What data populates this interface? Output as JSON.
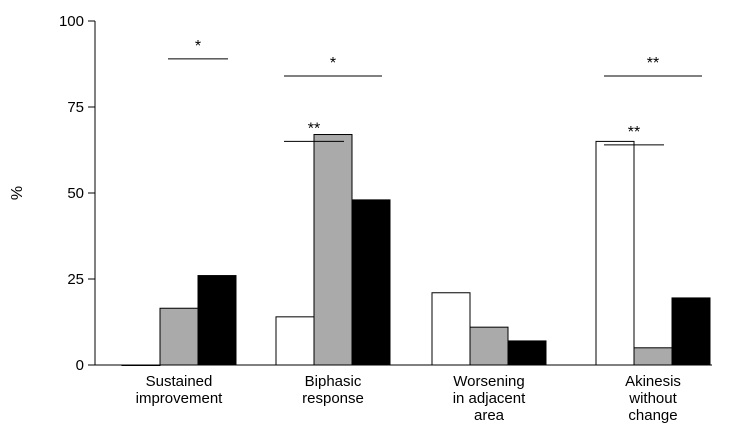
{
  "chart_data": {
    "type": "bar",
    "title": "",
    "xlabel": "",
    "ylabel": "%",
    "ylim": [
      0,
      100
    ],
    "yticks": [
      "0",
      "25",
      "50",
      "75",
      "100"
    ],
    "categories": [
      [
        "Sustained",
        "improvement"
      ],
      [
        "Biphasic",
        "response"
      ],
      [
        "Worsening",
        "in adjacent",
        "area"
      ],
      [
        "Akinesis",
        "without",
        "change"
      ]
    ],
    "series": [
      {
        "color": "#ffffff",
        "values": [
          0,
          14,
          21,
          65
        ]
      },
      {
        "color": "#aaaaaa",
        "values": [
          16.5,
          67,
          11,
          5
        ]
      },
      {
        "color": "#000000",
        "values": [
          26,
          48,
          7,
          19.5
        ]
      }
    ],
    "significance": [
      {
        "category": 0,
        "from": 1,
        "to": 2,
        "label": "*",
        "y": 89
      },
      {
        "category": 1,
        "from": 0,
        "to": 1,
        "label": "**",
        "y": 65
      },
      {
        "category": 1,
        "from": 0,
        "to": 2,
        "label": "*",
        "y": 84
      },
      {
        "category": 3,
        "from": 0,
        "to": 1,
        "label": "**",
        "y": 64
      },
      {
        "category": 3,
        "from": 0,
        "to": 2,
        "label": "**",
        "y": 84
      }
    ],
    "grid": false,
    "legend": "none"
  }
}
